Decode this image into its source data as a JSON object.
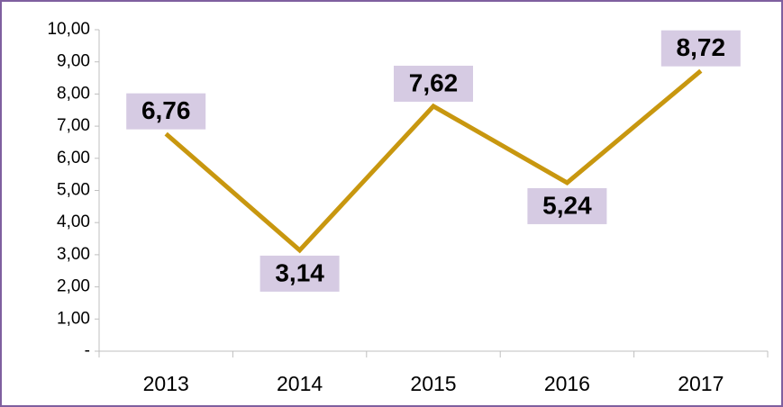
{
  "chart_data": {
    "type": "line",
    "categories": [
      "2013",
      "2014",
      "2015",
      "2016",
      "2017"
    ],
    "series": [
      {
        "color": "#c8970f",
        "values": [
          6.76,
          3.14,
          7.62,
          5.24,
          8.72
        ],
        "value_labels": [
          "6,76",
          "3,14",
          "7,62",
          "5,24",
          "8,72"
        ]
      }
    ],
    "ylim": [
      0,
      10
    ],
    "yticks": [
      {
        "value": 0,
        "label": "-"
      },
      {
        "value": 1,
        "label": "1,00"
      },
      {
        "value": 2,
        "label": "2,00"
      },
      {
        "value": 3,
        "label": "3,00"
      },
      {
        "value": 4,
        "label": "4,00"
      },
      {
        "value": 5,
        "label": "5,00"
      },
      {
        "value": 6,
        "label": "6,00"
      },
      {
        "value": 7,
        "label": "7,00"
      },
      {
        "value": 8,
        "label": "8,00"
      },
      {
        "value": 9,
        "label": "9,00"
      },
      {
        "value": 10,
        "label": "10,00"
      }
    ],
    "grid": false
  }
}
